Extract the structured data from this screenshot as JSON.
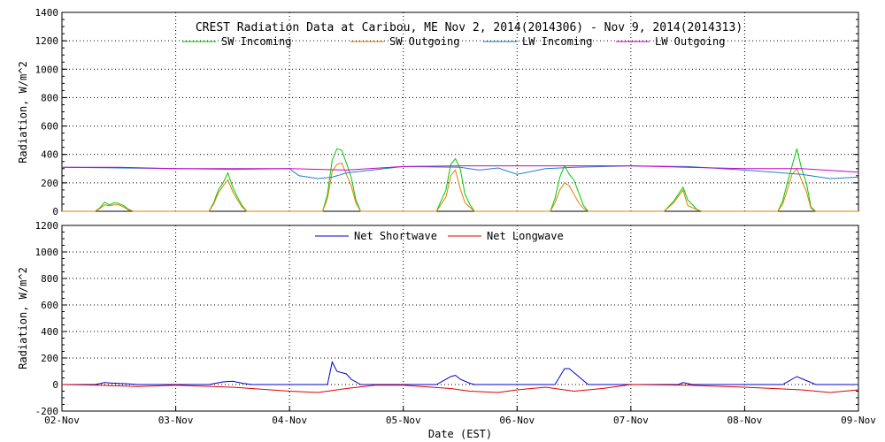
{
  "chart_data": [
    {
      "type": "line",
      "title": "CREST Radiation Data at Caribou, ME   Nov  2, 2014(2014306) - Nov  9, 2014(2014313)",
      "xlabel": "",
      "ylabel": "Radiation, W/m^2",
      "xlim": [
        "2014-11-02",
        "2014-11-09"
      ],
      "ylim": [
        0,
        1400
      ],
      "yticks": [
        0,
        200,
        400,
        600,
        800,
        1000,
        1200,
        1400
      ],
      "grid": true,
      "legend_position": "top",
      "series": [
        {
          "name": "SW Incoming",
          "color": "#00cc00",
          "points": [
            [
              "2014-11-02T00:00",
              0
            ],
            [
              "2014-11-02T07:00",
              0
            ],
            [
              "2014-11-02T08:00",
              25
            ],
            [
              "2014-11-02T09:00",
              65
            ],
            [
              "2014-11-02T10:00",
              45
            ],
            [
              "2014-11-02T11:00",
              60
            ],
            [
              "2014-11-02T12:00",
              55
            ],
            [
              "2014-11-02T13:00",
              40
            ],
            [
              "2014-11-02T14:00",
              15
            ],
            [
              "2014-11-02T15:00",
              0
            ],
            [
              "2014-11-03T07:00",
              0
            ],
            [
              "2014-11-03T08:00",
              60
            ],
            [
              "2014-11-03T09:00",
              150
            ],
            [
              "2014-11-03T10:00",
              200
            ],
            [
              "2014-11-03T11:00",
              270
            ],
            [
              "2014-11-03T12:00",
              170
            ],
            [
              "2014-11-03T13:00",
              100
            ],
            [
              "2014-11-03T14:00",
              40
            ],
            [
              "2014-11-03T15:00",
              0
            ],
            [
              "2014-11-04T07:00",
              0
            ],
            [
              "2014-11-04T08:00",
              120
            ],
            [
              "2014-11-04T09:00",
              360
            ],
            [
              "2014-11-04T10:00",
              440
            ],
            [
              "2014-11-04T11:00",
              430
            ],
            [
              "2014-11-04T12:00",
              340
            ],
            [
              "2014-11-04T13:00",
              240
            ],
            [
              "2014-11-04T14:00",
              80
            ],
            [
              "2014-11-04T15:00",
              0
            ],
            [
              "2014-11-05T07:00",
              0
            ],
            [
              "2014-11-05T09:00",
              150
            ],
            [
              "2014-11-05T10:00",
              330
            ],
            [
              "2014-11-05T11:00",
              370
            ],
            [
              "2014-11-05T12:00",
              300
            ],
            [
              "2014-11-05T13:00",
              120
            ],
            [
              "2014-11-05T14:00",
              50
            ],
            [
              "2014-11-05T15:00",
              0
            ],
            [
              "2014-11-06T07:00",
              0
            ],
            [
              "2014-11-06T08:00",
              90
            ],
            [
              "2014-11-06T09:00",
              240
            ],
            [
              "2014-11-06T10:00",
              320
            ],
            [
              "2014-11-06T11:00",
              260
            ],
            [
              "2014-11-06T12:00",
              220
            ],
            [
              "2014-11-06T13:00",
              130
            ],
            [
              "2014-11-06T14:00",
              40
            ],
            [
              "2014-11-06T15:00",
              0
            ],
            [
              "2014-11-07T07:00",
              0
            ],
            [
              "2014-11-07T09:00",
              70
            ],
            [
              "2014-11-07T11:00",
              170
            ],
            [
              "2014-11-07T12:00",
              80
            ],
            [
              "2014-11-07T14:00",
              10
            ],
            [
              "2014-11-07T15:00",
              0
            ],
            [
              "2014-11-08T07:00",
              0
            ],
            [
              "2014-11-08T08:00",
              70
            ],
            [
              "2014-11-08T09:00",
              200
            ],
            [
              "2014-11-08T10:00",
              320
            ],
            [
              "2014-11-08T11:00",
              440
            ],
            [
              "2014-11-08T12:00",
              300
            ],
            [
              "2014-11-08T13:00",
              200
            ],
            [
              "2014-11-08T14:00",
              30
            ],
            [
              "2014-11-08T15:00",
              0
            ],
            [
              "2014-11-09T00:00",
              0
            ]
          ]
        },
        {
          "name": "SW Outgoing",
          "color": "#e08000",
          "points": [
            [
              "2014-11-02T00:00",
              0
            ],
            [
              "2014-11-02T07:00",
              0
            ],
            [
              "2014-11-02T08:00",
              20
            ],
            [
              "2014-11-02T09:00",
              45
            ],
            [
              "2014-11-02T10:00",
              40
            ],
            [
              "2014-11-02T11:00",
              45
            ],
            [
              "2014-11-02T12:00",
              45
            ],
            [
              "2014-11-02T13:00",
              30
            ],
            [
              "2014-11-02T14:00",
              10
            ],
            [
              "2014-11-02T15:00",
              0
            ],
            [
              "2014-11-03T07:00",
              0
            ],
            [
              "2014-11-03T08:00",
              50
            ],
            [
              "2014-11-03T09:00",
              130
            ],
            [
              "2014-11-03T10:00",
              180
            ],
            [
              "2014-11-03T11:00",
              220
            ],
            [
              "2014-11-03T12:00",
              140
            ],
            [
              "2014-11-03T13:00",
              80
            ],
            [
              "2014-11-03T14:00",
              30
            ],
            [
              "2014-11-03T15:00",
              0
            ],
            [
              "2014-11-04T07:00",
              0
            ],
            [
              "2014-11-04T08:00",
              90
            ],
            [
              "2014-11-04T09:00",
              280
            ],
            [
              "2014-11-04T10:00",
              330
            ],
            [
              "2014-11-04T11:00",
              340
            ],
            [
              "2014-11-04T12:00",
              260
            ],
            [
              "2014-11-04T13:00",
              180
            ],
            [
              "2014-11-04T14:00",
              60
            ],
            [
              "2014-11-04T15:00",
              0
            ],
            [
              "2014-11-05T07:00",
              0
            ],
            [
              "2014-11-05T09:00",
              100
            ],
            [
              "2014-11-05T10:00",
              250
            ],
            [
              "2014-11-05T11:00",
              290
            ],
            [
              "2014-11-05T12:00",
              160
            ],
            [
              "2014-11-05T13:00",
              60
            ],
            [
              "2014-11-05T14:00",
              30
            ],
            [
              "2014-11-05T15:00",
              0
            ],
            [
              "2014-11-06T07:00",
              0
            ],
            [
              "2014-11-06T08:00",
              60
            ],
            [
              "2014-11-06T09:00",
              150
            ],
            [
              "2014-11-06T10:00",
              200
            ],
            [
              "2014-11-06T11:00",
              180
            ],
            [
              "2014-11-06T12:00",
              120
            ],
            [
              "2014-11-06T13:00",
              60
            ],
            [
              "2014-11-06T14:00",
              20
            ],
            [
              "2014-11-06T15:00",
              0
            ],
            [
              "2014-11-07T07:00",
              0
            ],
            [
              "2014-11-07T09:00",
              60
            ],
            [
              "2014-11-07T11:00",
              150
            ],
            [
              "2014-11-07T12:00",
              40
            ],
            [
              "2014-11-07T14:00",
              10
            ],
            [
              "2014-11-07T15:00",
              0
            ],
            [
              "2014-11-08T07:00",
              0
            ],
            [
              "2014-11-08T08:00",
              50
            ],
            [
              "2014-11-08T09:00",
              150
            ],
            [
              "2014-11-08T10:00",
              260
            ],
            [
              "2014-11-08T11:00",
              300
            ],
            [
              "2014-11-08T12:00",
              220
            ],
            [
              "2014-11-08T13:00",
              140
            ],
            [
              "2014-11-08T14:00",
              20
            ],
            [
              "2014-11-08T15:00",
              0
            ],
            [
              "2014-11-09T00:00",
              0
            ]
          ]
        },
        {
          "name": "LW Incoming",
          "color": "#1f7fc8",
          "points": [
            [
              "2014-11-02T00:00",
              310
            ],
            [
              "2014-11-02T12:00",
              305
            ],
            [
              "2014-11-03T00:00",
              300
            ],
            [
              "2014-11-03T12:00",
              295
            ],
            [
              "2014-11-04T00:00",
              300
            ],
            [
              "2014-11-04T02:00",
              250
            ],
            [
              "2014-11-04T06:00",
              230
            ],
            [
              "2014-11-04T09:00",
              240
            ],
            [
              "2014-11-04T12:00",
              270
            ],
            [
              "2014-11-05T00:00",
              315
            ],
            [
              "2014-11-05T12:00",
              310
            ],
            [
              "2014-11-05T16:00",
              290
            ],
            [
              "2014-11-05T20:00",
              305
            ],
            [
              "2014-11-06T00:00",
              260
            ],
            [
              "2014-11-06T06:00",
              300
            ],
            [
              "2014-11-06T12:00",
              310
            ],
            [
              "2014-11-07T00:00",
              320
            ],
            [
              "2014-11-07T12:00",
              315
            ],
            [
              "2014-11-08T00:00",
              290
            ],
            [
              "2014-11-08T12:00",
              260
            ],
            [
              "2014-11-08T18:00",
              230
            ],
            [
              "2014-11-09T00:00",
              240
            ]
          ]
        },
        {
          "name": "LW Outgoing",
          "color": "#cc00cc",
          "points": [
            [
              "2014-11-02T00:00",
              310
            ],
            [
              "2014-11-02T12:00",
              310
            ],
            [
              "2014-11-03T00:00",
              300
            ],
            [
              "2014-11-03T12:00",
              300
            ],
            [
              "2014-11-04T00:00",
              300
            ],
            [
              "2014-11-04T12:00",
              290
            ],
            [
              "2014-11-05T00:00",
              315
            ],
            [
              "2014-11-05T12:00",
              320
            ],
            [
              "2014-11-06T00:00",
              320
            ],
            [
              "2014-11-06T12:00",
              320
            ],
            [
              "2014-11-07T00:00",
              320
            ],
            [
              "2014-11-07T12:00",
              310
            ],
            [
              "2014-11-08T00:00",
              300
            ],
            [
              "2014-11-08T12:00",
              300
            ],
            [
              "2014-11-09T00:00",
              275
            ]
          ]
        }
      ]
    },
    {
      "type": "line",
      "title": "",
      "xlabel": "Date (EST)",
      "ylabel": "Radiation, W/m^2",
      "xlim": [
        "2014-11-02",
        "2014-11-09"
      ],
      "ylim": [
        -200,
        1200
      ],
      "yticks": [
        -200,
        0,
        200,
        400,
        600,
        800,
        1000,
        1200
      ],
      "xticks": [
        "02-Nov",
        "03-Nov",
        "04-Nov",
        "05-Nov",
        "06-Nov",
        "07-Nov",
        "08-Nov",
        "09-Nov"
      ],
      "grid": true,
      "legend_position": "top",
      "series": [
        {
          "name": "Net Shortwave",
          "color": "#0000cc",
          "points": [
            [
              "2014-11-02T00:00",
              0
            ],
            [
              "2014-11-02T07:00",
              0
            ],
            [
              "2014-11-02T09:00",
              15
            ],
            [
              "2014-11-02T11:00",
              10
            ],
            [
              "2014-11-02T14:00",
              5
            ],
            [
              "2014-11-02T16:00",
              0
            ],
            [
              "2014-11-03T07:00",
              0
            ],
            [
              "2014-11-03T10:00",
              20
            ],
            [
              "2014-11-03T12:00",
              25
            ],
            [
              "2014-11-03T14:00",
              10
            ],
            [
              "2014-11-03T16:00",
              0
            ],
            [
              "2014-11-04T08:00",
              0
            ],
            [
              "2014-11-04T09:00",
              170
            ],
            [
              "2014-11-04T10:00",
              100
            ],
            [
              "2014-11-04T12:00",
              80
            ],
            [
              "2014-11-04T13:00",
              40
            ],
            [
              "2014-11-04T15:00",
              0
            ],
            [
              "2014-11-05T07:00",
              0
            ],
            [
              "2014-11-05T10:00",
              60
            ],
            [
              "2014-11-05T11:00",
              70
            ],
            [
              "2014-11-05T12:00",
              40
            ],
            [
              "2014-11-05T14:00",
              10
            ],
            [
              "2014-11-05T15:00",
              0
            ],
            [
              "2014-11-06T08:00",
              0
            ],
            [
              "2014-11-06T10:00",
              120
            ],
            [
              "2014-11-06T11:00",
              120
            ],
            [
              "2014-11-06T13:00",
              60
            ],
            [
              "2014-11-06T15:00",
              0
            ],
            [
              "2014-11-07T10:00",
              0
            ],
            [
              "2014-11-07T11:00",
              15
            ],
            [
              "2014-11-07T13:00",
              0
            ],
            [
              "2014-11-08T08:00",
              0
            ],
            [
              "2014-11-08T10:00",
              40
            ],
            [
              "2014-11-08T11:00",
              60
            ],
            [
              "2014-11-08T13:00",
              30
            ],
            [
              "2014-11-08T15:00",
              0
            ],
            [
              "2014-11-09T00:00",
              0
            ]
          ]
        },
        {
          "name": "Net Longwave",
          "color": "#dd0000",
          "points": [
            [
              "2014-11-02T00:00",
              0
            ],
            [
              "2014-11-02T08:00",
              -5
            ],
            [
              "2014-11-02T16:00",
              -15
            ],
            [
              "2014-11-03T00:00",
              -5
            ],
            [
              "2014-11-03T12:00",
              -20
            ],
            [
              "2014-11-04T00:00",
              -50
            ],
            [
              "2014-11-04T06:00",
              -60
            ],
            [
              "2014-11-04T12:00",
              -30
            ],
            [
              "2014-11-04T18:00",
              -5
            ],
            [
              "2014-11-05T00:00",
              -5
            ],
            [
              "2014-11-05T10:00",
              -30
            ],
            [
              "2014-11-05T14:00",
              -50
            ],
            [
              "2014-11-05T20:00",
              -60
            ],
            [
              "2014-11-06T00:00",
              -40
            ],
            [
              "2014-11-06T06:00",
              -20
            ],
            [
              "2014-11-06T12:00",
              -50
            ],
            [
              "2014-11-06T18:00",
              -30
            ],
            [
              "2014-11-07T00:00",
              0
            ],
            [
              "2014-11-07T12:00",
              -5
            ],
            [
              "2014-11-08T00:00",
              -20
            ],
            [
              "2014-11-08T06:00",
              -30
            ],
            [
              "2014-11-08T12:00",
              -40
            ],
            [
              "2014-11-08T18:00",
              -60
            ],
            [
              "2014-11-09T00:00",
              -40
            ]
          ]
        }
      ]
    }
  ]
}
